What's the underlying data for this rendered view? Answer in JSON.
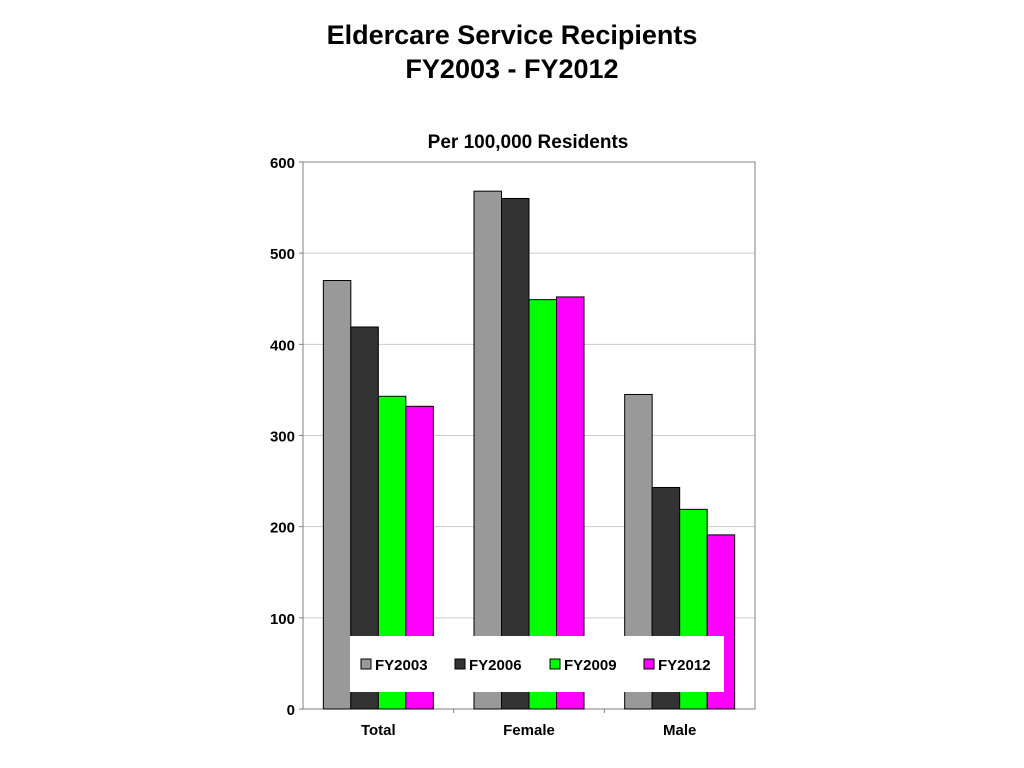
{
  "slide": {
    "title_line1": "Eldercare Service Recipients",
    "title_line2": "FY2003 - FY2012"
  },
  "chart_data": {
    "type": "bar",
    "title": "Per 100,000 Residents",
    "xlabel": "",
    "ylabel": "",
    "categories": [
      "Total",
      "Female",
      "Male"
    ],
    "series": [
      {
        "name": "FY2003",
        "color": "#999999",
        "values": [
          470,
          568,
          345
        ]
      },
      {
        "name": "FY2006",
        "color": "#333333",
        "values": [
          419,
          560,
          243
        ]
      },
      {
        "name": "FY2009",
        "color": "#00FF00",
        "values": [
          343,
          449,
          219
        ]
      },
      {
        "name": "FY2012",
        "color": "#FF00FF",
        "values": [
          332,
          452,
          191
        ]
      }
    ],
    "ylim": [
      0,
      600
    ],
    "yticks": [
      0,
      100,
      200,
      300,
      400,
      500,
      600
    ],
    "grid": true,
    "legend_position": "bottom-inside"
  }
}
